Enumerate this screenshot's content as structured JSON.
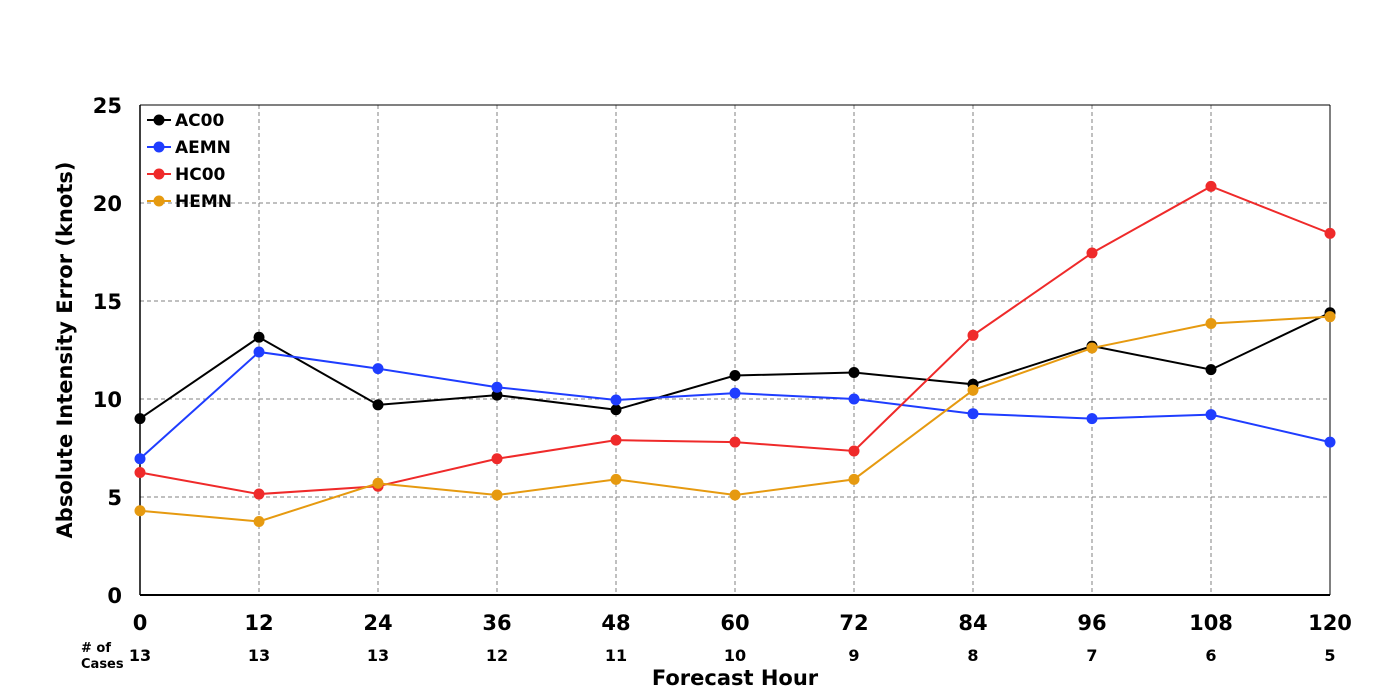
{
  "chart_data": {
    "type": "line",
    "title": "",
    "xlabel": "Forecast Hour",
    "ylabel": "Absolute Intensity Error (knots)",
    "x": [
      0,
      12,
      24,
      36,
      48,
      60,
      72,
      84,
      96,
      108,
      120
    ],
    "xlim": [
      0,
      120
    ],
    "ylim": [
      0,
      25
    ],
    "yticks": [
      0,
      5,
      10,
      15,
      20,
      25
    ],
    "grid": true,
    "legend_position": "top-left",
    "cases_title_line1": "# of",
    "cases_title_line2": "Cases",
    "cases": [
      13,
      13,
      13,
      12,
      11,
      10,
      9,
      8,
      7,
      6,
      5
    ],
    "series": [
      {
        "name": "AC00",
        "color": "#000000",
        "values": [
          9.0,
          13.15,
          9.7,
          10.2,
          9.45,
          11.2,
          11.35,
          10.75,
          12.7,
          11.5,
          14.4
        ]
      },
      {
        "name": "AEMN",
        "color": "#1f3dff",
        "values": [
          6.95,
          12.4,
          11.55,
          10.6,
          9.95,
          10.3,
          10.0,
          9.25,
          9.0,
          9.2,
          7.8
        ]
      },
      {
        "name": "HC00",
        "color": "#ef2a2a",
        "values": [
          6.25,
          5.15,
          5.55,
          6.95,
          7.9,
          7.8,
          7.35,
          13.25,
          17.45,
          20.85,
          18.45
        ]
      },
      {
        "name": "HEMN",
        "color": "#e69a10",
        "values": [
          4.3,
          3.75,
          5.7,
          5.1,
          5.9,
          5.1,
          5.9,
          10.45,
          12.6,
          13.85,
          14.2
        ]
      }
    ]
  }
}
